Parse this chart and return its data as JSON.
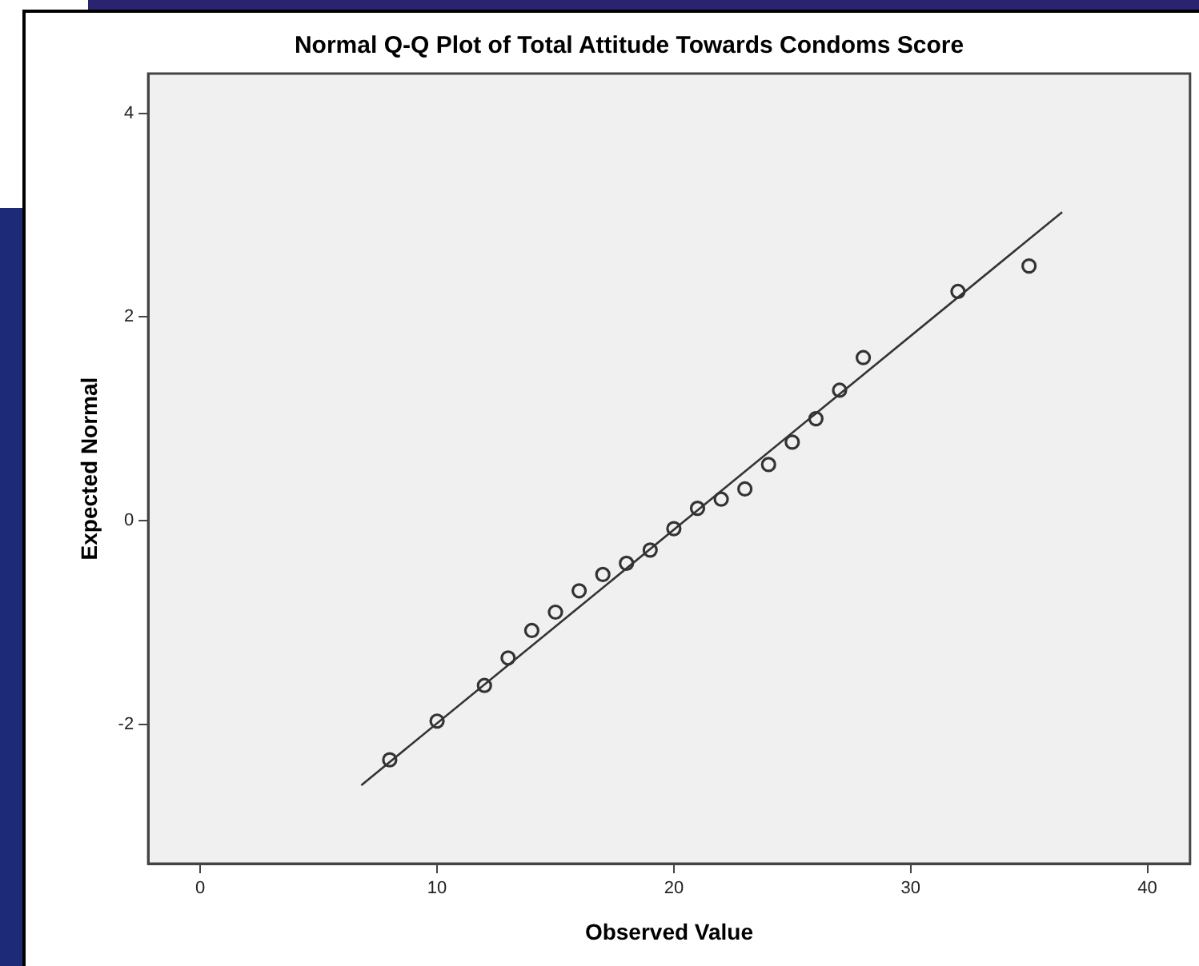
{
  "chart_data": {
    "type": "scatter",
    "title": "Normal Q-Q Plot of Total Attitude Towards Condoms Score",
    "xlabel": "Observed Value",
    "ylabel": "Expected Normal",
    "xlim": [
      -2.2,
      41.8
    ],
    "ylim": [
      -3.37,
      4.39
    ],
    "xticks": [
      0,
      10,
      20,
      30,
      40
    ],
    "yticks": [
      -2,
      0,
      2,
      4
    ],
    "grid": false,
    "legend": false,
    "marker": "circle",
    "series": [
      {
        "type": "scatter",
        "color": "#333333",
        "x": [
          8,
          10,
          12,
          13,
          14,
          15,
          16,
          17,
          18,
          19,
          20,
          21,
          22,
          23,
          24,
          25,
          26,
          27,
          28,
          32,
          35
        ],
        "values": [
          -2.35,
          -1.97,
          -1.62,
          -1.35,
          -1.08,
          -0.9,
          -0.69,
          -0.53,
          -0.42,
          -0.29,
          -0.08,
          0.12,
          0.21,
          0.31,
          0.55,
          0.77,
          1.0,
          1.28,
          1.6,
          2.25,
          2.5
        ]
      },
      {
        "type": "line",
        "color": "#333333",
        "marker": "none",
        "x": [
          6.8,
          36.4
        ],
        "values": [
          -2.6,
          3.03
        ]
      }
    ]
  }
}
